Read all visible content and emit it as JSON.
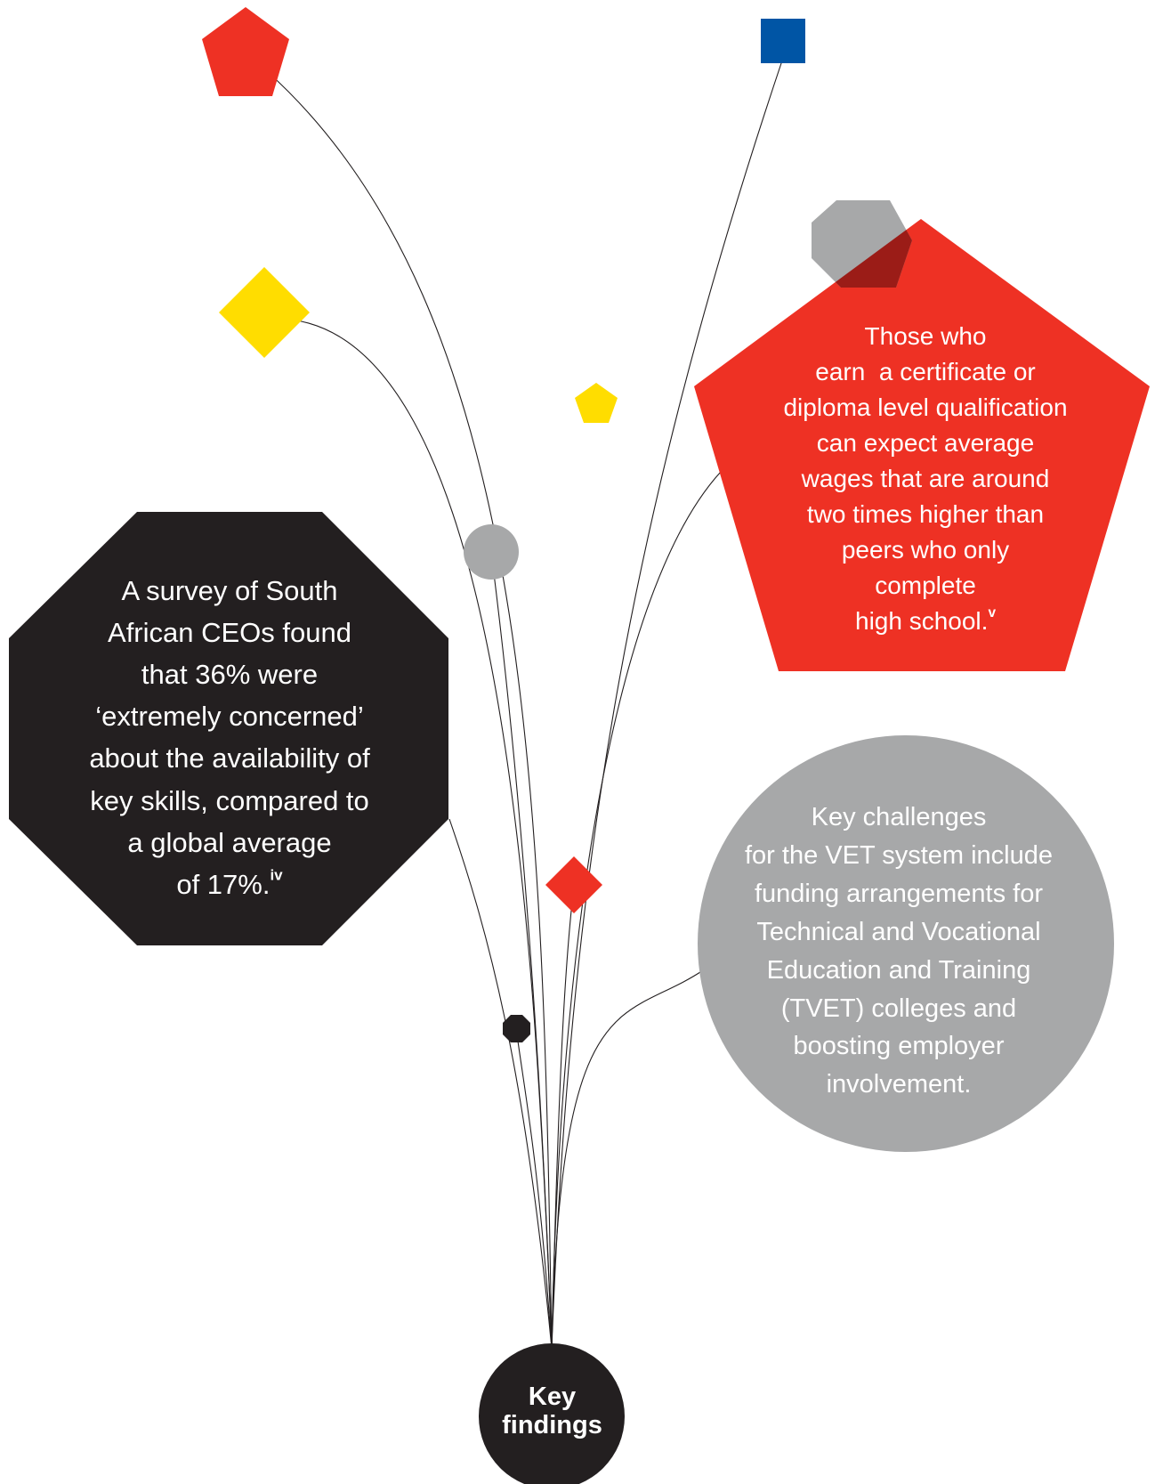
{
  "colors": {
    "red": "#ee3124",
    "blue": "#0055a5",
    "yellow": "#ffdd00",
    "gray": "#a7a8a9",
    "black": "#231f20",
    "overlap": "#9b1c17",
    "line": "#231f20"
  },
  "hub": {
    "label_lines": [
      "Key",
      "findings"
    ]
  },
  "findings": [
    {
      "id": "ceo-survey",
      "shape": "octagon",
      "color": "black",
      "lines": [
        "A survey of South",
        "African CEOs found",
        "that 36% were",
        "‘extremely concerned’",
        "about the availability of",
        "key skills, compared to",
        "a global average",
        "of 17%."
      ],
      "footnote": "iv"
    },
    {
      "id": "wages",
      "shape": "pentagon",
      "color": "red",
      "lines": [
        "Those who",
        "earn  a certificate or",
        "diploma level qualification",
        "can expect average",
        "wages that are around",
        "two times higher than",
        "peers who only",
        "complete",
        "high school."
      ],
      "footnote": "v"
    },
    {
      "id": "vet-challenges",
      "shape": "circle",
      "color": "gray",
      "lines": [
        "Key challenges",
        "for the VET system include",
        "funding arrangements for",
        "Technical and Vocational",
        "Education and Training",
        "(TVET) colleges and",
        "boosting employer",
        "involvement."
      ],
      "footnote": ""
    }
  ],
  "decorations": [
    {
      "id": "red-pentagon-top",
      "shape": "pentagon",
      "color": "red"
    },
    {
      "id": "blue-square-top",
      "shape": "square",
      "color": "blue"
    },
    {
      "id": "yellow-diamond",
      "shape": "diamond",
      "color": "yellow"
    },
    {
      "id": "yellow-pentagon-small",
      "shape": "pentagon",
      "color": "yellow"
    },
    {
      "id": "gray-circle-small",
      "shape": "circle",
      "color": "gray"
    },
    {
      "id": "gray-octagon-top",
      "shape": "octagon",
      "color": "gray"
    },
    {
      "id": "red-diamond-small",
      "shape": "diamond",
      "color": "red"
    },
    {
      "id": "black-octagon-small",
      "shape": "octagon",
      "color": "black"
    }
  ]
}
